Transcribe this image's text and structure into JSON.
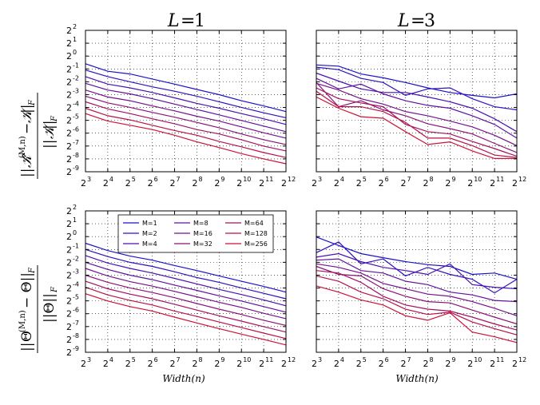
{
  "chart_data": [
    {
      "panel": "top-left",
      "type": "line",
      "title": "L = 1",
      "xscale": "log2",
      "yscale": "log2",
      "x": [
        8,
        16,
        32,
        64,
        128,
        256,
        512,
        1024,
        2048,
        4096
      ],
      "xlim": [
        8,
        4096
      ],
      "ylim": [
        0.001953125,
        4
      ],
      "xticks": [
        "3",
        "4",
        "5",
        "6",
        "7",
        "8",
        "9",
        "10",
        "11",
        "12"
      ],
      "yticks": [
        "2",
        "1",
        "0",
        "-1",
        "-2",
        "-3",
        "-4",
        "-5",
        "-6",
        "-7",
        "-8",
        "-9"
      ],
      "grid": true,
      "series": [
        {
          "name": "M=1",
          "color": "#1c12cc",
          "values": [
            0.66,
            0.44,
            0.38,
            0.29,
            0.22,
            0.165,
            0.125,
            0.09,
            0.068,
            0.05
          ]
        },
        {
          "name": "M=2",
          "color": "#3010c0",
          "values": [
            0.47,
            0.33,
            0.25,
            0.19,
            0.15,
            0.115,
            0.085,
            0.063,
            0.047,
            0.036
          ]
        },
        {
          "name": "M=4",
          "color": "#4a12b0",
          "values": [
            0.33,
            0.22,
            0.18,
            0.14,
            0.105,
            0.078,
            0.06,
            0.045,
            0.034,
            0.025
          ]
        },
        {
          "name": "M=8",
          "color": "#60129e",
          "values": [
            0.23,
            0.16,
            0.13,
            0.1,
            0.075,
            0.056,
            0.042,
            0.031,
            0.023,
            0.017
          ]
        },
        {
          "name": "M=16",
          "color": "#76128c",
          "values": [
            0.16,
            0.11,
            0.09,
            0.068,
            0.052,
            0.039,
            0.03,
            0.022,
            0.016,
            0.012
          ]
        },
        {
          "name": "M=32",
          "color": "#8c1278",
          "values": [
            0.115,
            0.08,
            0.063,
            0.048,
            0.037,
            0.028,
            0.021,
            0.015,
            0.011,
            0.0085
          ]
        },
        {
          "name": "M=64",
          "color": "#a41262",
          "values": [
            0.085,
            0.058,
            0.045,
            0.034,
            0.026,
            0.019,
            0.015,
            0.011,
            0.0078,
            0.006
          ]
        },
        {
          "name": "M=128",
          "color": "#b8124c",
          "values": [
            0.06,
            0.04,
            0.032,
            0.024,
            0.018,
            0.014,
            0.01,
            0.0075,
            0.0055,
            0.0042
          ]
        },
        {
          "name": "M=256",
          "color": "#cc1236",
          "values": [
            0.045,
            0.03,
            0.024,
            0.019,
            0.014,
            0.0098,
            0.0072,
            0.0052,
            0.0039,
            0.003
          ]
        }
      ]
    },
    {
      "panel": "top-right",
      "type": "line",
      "title": "L = 3",
      "xscale": "log2",
      "yscale": "log2",
      "x": [
        8,
        16,
        32,
        64,
        128,
        256,
        512,
        1024,
        2048,
        4096
      ],
      "xlim": [
        8,
        4096
      ],
      "ylim": [
        0.001953125,
        4
      ],
      "xticks": [
        "3",
        "4",
        "5",
        "6",
        "7",
        "8",
        "9",
        "10",
        "11",
        "12"
      ],
      "grid": true,
      "series": [
        {
          "name": "M=1",
          "color": "#1c12cc",
          "values": [
            0.62,
            0.58,
            0.38,
            0.31,
            0.24,
            0.18,
            0.14,
            0.12,
            0.105,
            0.13
          ]
        },
        {
          "name": "M=2",
          "color": "#3010c0",
          "values": [
            0.55,
            0.48,
            0.3,
            0.24,
            0.12,
            0.17,
            0.18,
            0.1,
            0.065,
            0.055
          ]
        },
        {
          "name": "M=4",
          "color": "#4a12b0",
          "values": [
            0.4,
            0.26,
            0.17,
            0.14,
            0.14,
            0.11,
            0.085,
            0.06,
            0.034,
            0.017
          ]
        },
        {
          "name": "M=8",
          "color": "#60129e",
          "values": [
            0.3,
            0.17,
            0.22,
            0.13,
            0.09,
            0.07,
            0.06,
            0.04,
            0.025,
            0.012
          ]
        },
        {
          "name": "M=16",
          "color": "#76128c",
          "values": [
            0.23,
            0.16,
            0.1,
            0.075,
            0.05,
            0.04,
            0.03,
            0.022,
            0.014,
            0.008
          ]
        },
        {
          "name": "M=32",
          "color": "#8c1278",
          "values": [
            0.24,
            0.065,
            0.09,
            0.055,
            0.04,
            0.026,
            0.02,
            0.015,
            0.009,
            0.0055
          ]
        },
        {
          "name": "M=64",
          "color": "#a41262",
          "values": [
            0.18,
            0.1,
            0.08,
            0.065,
            0.025,
            0.017,
            0.015,
            0.01,
            0.0068,
            0.0045
          ]
        },
        {
          "name": "M=128",
          "color": "#b8124c",
          "values": [
            0.15,
            0.065,
            0.065,
            0.05,
            0.028,
            0.012,
            0.012,
            0.008,
            0.0048,
            0.0042
          ]
        },
        {
          "name": "M=256",
          "color": "#cc1236",
          "values": [
            0.11,
            0.06,
            0.038,
            0.035,
            0.017,
            0.0085,
            0.0098,
            0.006,
            0.004,
            0.004
          ]
        }
      ]
    },
    {
      "panel": "bottom-left",
      "type": "line",
      "xlabel": "Width(n)",
      "xscale": "log2",
      "yscale": "log2",
      "x": [
        8,
        16,
        32,
        64,
        128,
        256,
        512,
        1024,
        2048,
        4096
      ],
      "xlim": [
        8,
        4096
      ],
      "ylim": [
        0.001953125,
        4
      ],
      "xticks": [
        "3",
        "4",
        "5",
        "6",
        "7",
        "8",
        "9",
        "10",
        "11",
        "12"
      ],
      "yticks": [
        "2",
        "1",
        "0",
        "-1",
        "-2",
        "-3",
        "-4",
        "-5",
        "-6",
        "-7",
        "-8",
        "-9"
      ],
      "grid": true,
      "legend": "upper-center",
      "series": [
        {
          "name": "M=1",
          "color": "#1c12cc",
          "values": [
            0.7,
            0.47,
            0.35,
            0.28,
            0.21,
            0.16,
            0.12,
            0.09,
            0.068,
            0.05
          ]
        },
        {
          "name": "M=2",
          "color": "#3010c0",
          "values": [
            0.5,
            0.34,
            0.25,
            0.2,
            0.15,
            0.11,
            0.085,
            0.063,
            0.047,
            0.035
          ]
        },
        {
          "name": "M=4",
          "color": "#4a12b0",
          "values": [
            0.36,
            0.24,
            0.18,
            0.14,
            0.105,
            0.078,
            0.058,
            0.044,
            0.033,
            0.024
          ]
        },
        {
          "name": "M=8",
          "color": "#60129e",
          "values": [
            0.25,
            0.17,
            0.125,
            0.098,
            0.073,
            0.055,
            0.041,
            0.031,
            0.023,
            0.017
          ]
        },
        {
          "name": "M=16",
          "color": "#76128c",
          "values": [
            0.18,
            0.12,
            0.088,
            0.069,
            0.052,
            0.039,
            0.029,
            0.022,
            0.016,
            0.012
          ]
        },
        {
          "name": "M=32",
          "color": "#8c1278",
          "values": [
            0.125,
            0.085,
            0.063,
            0.049,
            0.037,
            0.027,
            0.02,
            0.015,
            0.011,
            0.0083
          ]
        },
        {
          "name": "M=64",
          "color": "#a41262",
          "values": [
            0.09,
            0.06,
            0.045,
            0.035,
            0.026,
            0.019,
            0.014,
            0.0105,
            0.0078,
            0.0058
          ]
        },
        {
          "name": "M=128",
          "color": "#b8124c",
          "values": [
            0.065,
            0.043,
            0.032,
            0.025,
            0.018,
            0.0135,
            0.01,
            0.0074,
            0.0055,
            0.0041
          ]
        },
        {
          "name": "M=256",
          "color": "#cc1236",
          "values": [
            0.046,
            0.031,
            0.023,
            0.018,
            0.013,
            0.0095,
            0.007,
            0.0052,
            0.0039,
            0.0029
          ]
        }
      ]
    },
    {
      "panel": "bottom-right",
      "type": "line",
      "xlabel": "Width(n)",
      "xscale": "log2",
      "yscale": "log2",
      "x": [
        8,
        16,
        32,
        64,
        128,
        256,
        512,
        1024,
        2048,
        4096
      ],
      "xlim": [
        8,
        4096
      ],
      "ylim": [
        0.001953125,
        4
      ],
      "xticks": [
        "3",
        "4",
        "5",
        "6",
        "7",
        "8",
        "9",
        "10",
        "11",
        "12"
      ],
      "grid": true,
      "series": [
        {
          "name": "M=1",
          "color": "#1c12cc",
          "values": [
            0.98,
            0.62,
            0.4,
            0.32,
            0.26,
            0.22,
            0.2,
            0.13,
            0.14,
            0.1
          ]
        },
        {
          "name": "M=2",
          "color": "#3010c0",
          "values": [
            0.42,
            0.75,
            0.23,
            0.3,
            0.12,
            0.19,
            0.13,
            0.1,
            0.048,
            0.1
          ]
        },
        {
          "name": "M=4",
          "color": "#4a12b0",
          "values": [
            0.33,
            0.4,
            0.26,
            0.19,
            0.16,
            0.13,
            0.23,
            0.075,
            0.065,
            0.06
          ]
        },
        {
          "name": "M=8",
          "color": "#60129e",
          "values": [
            0.28,
            0.3,
            0.16,
            0.14,
            0.09,
            0.075,
            0.05,
            0.043,
            0.032,
            0.03
          ]
        },
        {
          "name": "M=16",
          "color": "#76128c",
          "values": [
            0.23,
            0.19,
            0.14,
            0.08,
            0.06,
            0.045,
            0.04,
            0.03,
            0.021,
            0.014
          ]
        },
        {
          "name": "M=32",
          "color": "#8c1278",
          "values": [
            0.2,
            0.13,
            0.12,
            0.06,
            0.04,
            0.03,
            0.028,
            0.019,
            0.013,
            0.009
          ]
        },
        {
          "name": "M=64",
          "color": "#a41262",
          "values": [
            0.16,
            0.14,
            0.085,
            0.04,
            0.025,
            0.02,
            0.018,
            0.013,
            0.009,
            0.0065
          ]
        },
        {
          "name": "M=128",
          "color": "#b8124c",
          "values": [
            0.12,
            0.09,
            0.05,
            0.035,
            0.02,
            0.015,
            0.017,
            0.01,
            0.007,
            0.005
          ]
        },
        {
          "name": "M=256",
          "color": "#cc1236",
          "values": [
            0.07,
            0.05,
            0.033,
            0.025,
            0.014,
            0.011,
            0.0165,
            0.0058,
            0.0045,
            0.0033
          ]
        }
      ]
    }
  ]
}
